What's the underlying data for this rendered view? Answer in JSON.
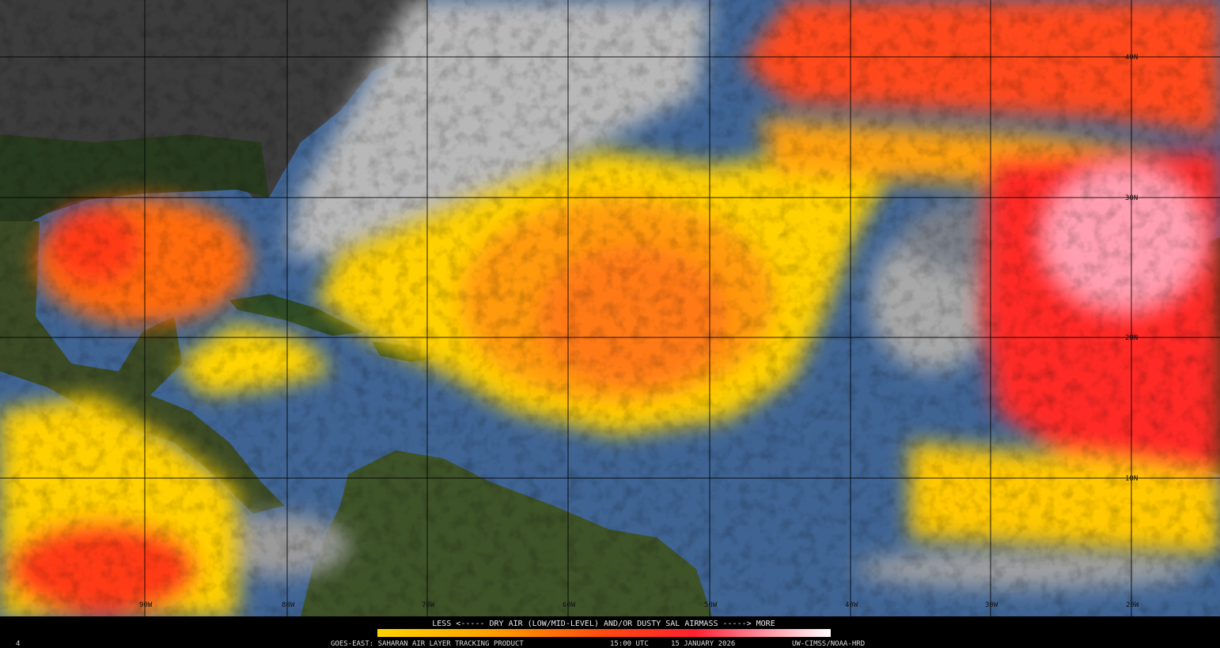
{
  "map": {
    "lat_labels": [
      "40N",
      "30N",
      "20N",
      "10N"
    ],
    "lon_labels": [
      "90W",
      "80W",
      "70W",
      "60W",
      "50W",
      "40W",
      "30W",
      "20W"
    ],
    "legend_caption": "LESS <----- DRY AIR (LOW/MID-LEVEL) AND/OR DUSTY SAL AIRMASS -----> MORE",
    "footer": {
      "product": "GOES-EAST: SAHARAN AIR LAYER TRACKING PRODUCT",
      "time": "15:00 UTC",
      "date": "15 JANUARY 2026",
      "credit": "UW-CIMSS/NOAA-HRD"
    },
    "frame_id": "4"
  }
}
